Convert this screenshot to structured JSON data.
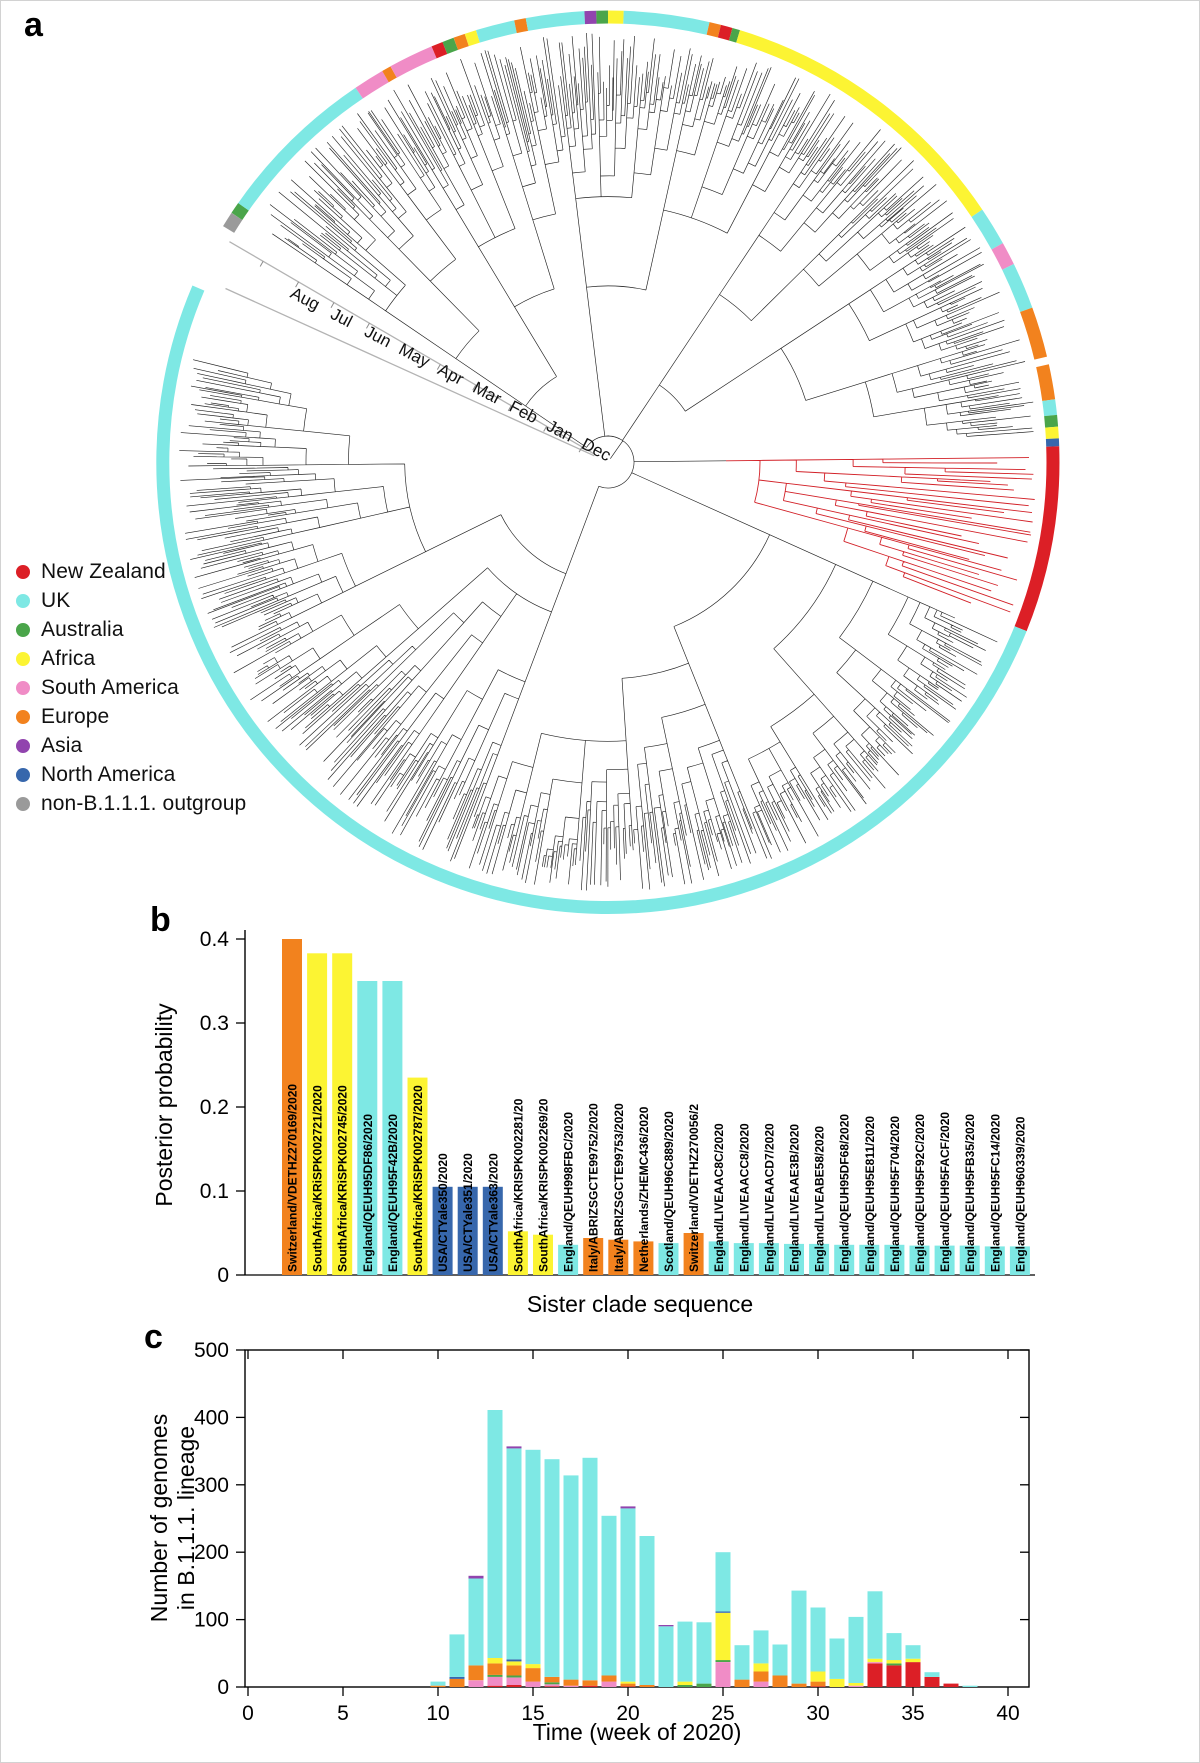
{
  "colors": {
    "new_zealand": "#DC1F26",
    "uk": "#7EE8E4",
    "australia": "#4AA54A",
    "africa": "#FCF433",
    "south_america": "#F08CC6",
    "europe": "#F2821E",
    "asia": "#9144AE",
    "north_america": "#3767AC",
    "outgroup": "#9A9A9A",
    "tree": "#000000",
    "highlight_clade": "#D22027",
    "axis": "#000000",
    "time_axis_line": "#b3b3b3"
  },
  "panel_a": {
    "label": "a",
    "legend": [
      {
        "name": "New Zealand",
        "color_key": "new_zealand"
      },
      {
        "name": "UK",
        "color_key": "uk"
      },
      {
        "name": "Australia",
        "color_key": "australia"
      },
      {
        "name": "Africa",
        "color_key": "africa"
      },
      {
        "name": "South America",
        "color_key": "south_america"
      },
      {
        "name": "Europe",
        "color_key": "europe"
      },
      {
        "name": "Asia",
        "color_key": "asia"
      },
      {
        "name": "North America",
        "color_key": "north_america"
      },
      {
        "name": "non-B.1.1.1. outgroup",
        "color_key": "outgroup"
      }
    ],
    "month_axis": [
      "Dec",
      "Jan",
      "Feb",
      "Mar",
      "Apr",
      "May",
      "Jun",
      "Jul",
      "Aug"
    ],
    "ring_segments": [
      {
        "s": 211.5,
        "e": 213.5,
        "c": "outgroup"
      },
      {
        "s": 213.5,
        "e": 215.0,
        "c": "australia"
      },
      {
        "s": 215.0,
        "e": 236.0,
        "c": "uk"
      },
      {
        "s": 236.0,
        "e": 240.0,
        "c": "south_america"
      },
      {
        "s": 240.0,
        "e": 241.2,
        "c": "europe"
      },
      {
        "s": 241.2,
        "e": 247.0,
        "c": "south_america"
      },
      {
        "s": 247.0,
        "e": 248.5,
        "c": "new_zealand"
      },
      {
        "s": 248.5,
        "e": 250.0,
        "c": "australia"
      },
      {
        "s": 250.0,
        "e": 251.5,
        "c": "europe"
      },
      {
        "s": 251.5,
        "e": 253.0,
        "c": "africa"
      },
      {
        "s": 253.0,
        "e": 258.0,
        "c": "uk"
      },
      {
        "s": 258.0,
        "e": 259.5,
        "c": "europe"
      },
      {
        "s": 259.5,
        "e": 267.0,
        "c": "uk"
      },
      {
        "s": 267.0,
        "e": 268.5,
        "c": "asia"
      },
      {
        "s": 268.5,
        "e": 270.0,
        "c": "australia"
      },
      {
        "s": 270.0,
        "e": 272.0,
        "c": "africa"
      },
      {
        "s": 272.0,
        "e": 283.0,
        "c": "uk"
      },
      {
        "s": 283.0,
        "e": 284.5,
        "c": "europe"
      },
      {
        "s": 284.5,
        "e": 286.0,
        "c": "new_zealand"
      },
      {
        "s": 286.0,
        "e": 287.0,
        "c": "australia"
      },
      {
        "s": 287.0,
        "e": 326.0,
        "c": "africa"
      },
      {
        "s": 326.0,
        "e": 331.0,
        "c": "uk"
      },
      {
        "s": 331.0,
        "e": 334.0,
        "c": "south_america"
      },
      {
        "s": 334.0,
        "e": 340.0,
        "c": "uk"
      },
      {
        "s": 340.0,
        "e": 346.5,
        "c": "europe"
      },
      {
        "s": 347.5,
        "e": 352.0,
        "c": "europe"
      },
      {
        "s": 352.0,
        "e": 354.0,
        "c": "uk"
      },
      {
        "s": 354.0,
        "e": 355.5,
        "c": "australia"
      },
      {
        "s": 355.5,
        "e": 357.0,
        "c": "africa"
      },
      {
        "s": 357.0,
        "e": 358.0,
        "c": "north_america"
      },
      {
        "s": 358.0,
        "e": 382.0,
        "c": "new_zealand"
      },
      {
        "s": 382.0,
        "e": 563.0,
        "c": "uk"
      }
    ]
  },
  "panel_b": {
    "label": "b",
    "ylabel": "Posterior probability",
    "xlabel": "Sister clade sequence",
    "yticks": [
      0,
      0.1,
      0.2,
      0.3,
      0.4
    ]
  },
  "panel_c": {
    "label": "c",
    "ylabel_line1": "Number of genomes",
    "ylabel_line2": "in B.1.1.1. lineage",
    "xlabel": "Time (week of 2020)",
    "yticks": [
      0,
      100,
      200,
      300,
      400,
      500
    ],
    "xticks": [
      0,
      5,
      10,
      15,
      20,
      25,
      30,
      35,
      40
    ]
  },
  "chart_data": [
    {
      "panel": "b",
      "type": "bar",
      "xlabel": "Sister clade sequence",
      "ylabel": "Posterior probability",
      "ylim": [
        0,
        0.4
      ],
      "yticks": [
        0,
        0.1,
        0.2,
        0.3,
        0.4
      ],
      "bars": [
        {
          "seq": "Switzerland/VDETHZ270169/2020",
          "region": "europe",
          "p": 0.4
        },
        {
          "seq": "SouthAfrica/KRiSPK002721/2020",
          "region": "africa",
          "p": 0.383
        },
        {
          "seq": "SouthAfrica/KRiSPK002745/2020",
          "region": "africa",
          "p": 0.383
        },
        {
          "seq": "England/QEUH95DF86/2020",
          "region": "uk",
          "p": 0.35
        },
        {
          "seq": "England/QEUH95F42B/2020",
          "region": "uk",
          "p": 0.35
        },
        {
          "seq": "SouthAfrica/KRiSPK002787/2020",
          "region": "africa",
          "p": 0.235
        },
        {
          "seq": "USA/CTYale350/2020",
          "region": "north_america",
          "p": 0.105
        },
        {
          "seq": "USA/CTYale351/2020",
          "region": "north_america",
          "p": 0.105
        },
        {
          "seq": "USA/CTYale363/2020",
          "region": "north_america",
          "p": 0.105
        },
        {
          "seq": "SouthAfrica/KRISPK002281/20",
          "region": "africa",
          "p": 0.052
        },
        {
          "seq": "SouthAfrica/KRISPK002269/20",
          "region": "africa",
          "p": 0.048
        },
        {
          "seq": "England/QEUH998FBC/2020",
          "region": "uk",
          "p": 0.036
        },
        {
          "seq": "Italy/ABRIZSGCTE99752/2020",
          "region": "europe",
          "p": 0.044
        },
        {
          "seq": "Italy/ABRIZSGCTE99753/2020",
          "region": "europe",
          "p": 0.042
        },
        {
          "seq": "Netherlands/ZHEMC436/2020",
          "region": "europe",
          "p": 0.04
        },
        {
          "seq": "Scotland/QEUH96C889/2020",
          "region": "uk",
          "p": 0.038
        },
        {
          "seq": "Switzerland/VDETHZ270056/2",
          "region": "europe",
          "p": 0.05
        },
        {
          "seq": "England/LIVEAAC8C/2020",
          "region": "uk",
          "p": 0.04
        },
        {
          "seq": "England/LIVEAACC8/2020",
          "region": "uk",
          "p": 0.038
        },
        {
          "seq": "England/LIVEAACD7/2020",
          "region": "uk",
          "p": 0.038
        },
        {
          "seq": "England/LIVEAAE3B/2020",
          "region": "uk",
          "p": 0.037
        },
        {
          "seq": "England/LIVEABE58/2020",
          "region": "uk",
          "p": 0.037
        },
        {
          "seq": "England/QEUH95DF68/2020",
          "region": "uk",
          "p": 0.036
        },
        {
          "seq": "England/QEUH95E811/2020",
          "region": "uk",
          "p": 0.036
        },
        {
          "seq": "England/QEUH95F704/2020",
          "region": "uk",
          "p": 0.036
        },
        {
          "seq": "England/QEUH95F92C/2020",
          "region": "uk",
          "p": 0.035
        },
        {
          "seq": "England/QEUH95FACF/2020",
          "region": "uk",
          "p": 0.035
        },
        {
          "seq": "England/QEUH95FB35/2020",
          "region": "uk",
          "p": 0.035
        },
        {
          "seq": "England/QEUH95FC14/2020",
          "region": "uk",
          "p": 0.034
        },
        {
          "seq": "England/QEUH960339/2020",
          "region": "uk",
          "p": 0.034
        }
      ]
    },
    {
      "panel": "c",
      "type": "stacked_bar",
      "xlabel": "Time (week of 2020)",
      "ylabel": "Number of genomes in B.1.1.1. lineage",
      "xlim": [
        0,
        41
      ],
      "ylim": [
        0,
        500
      ],
      "xticks": [
        0,
        5,
        10,
        15,
        20,
        25,
        30,
        35,
        40
      ],
      "yticks": [
        0,
        100,
        200,
        300,
        400,
        500
      ],
      "stack_order": [
        "new_zealand",
        "south_america",
        "australia",
        "europe",
        "africa",
        "north_america",
        "uk",
        "asia"
      ],
      "bars": [
        {
          "week": 10,
          "europe": 2,
          "uk": 6
        },
        {
          "week": 11,
          "europe": 12,
          "north_america": 3,
          "uk": 63
        },
        {
          "week": 12,
          "south_america": 10,
          "europe": 22,
          "uk": 129,
          "asia": 4
        },
        {
          "week": 13,
          "new_zealand": 2,
          "south_america": 13,
          "australia": 3,
          "europe": 17,
          "africa": 8,
          "uk": 368
        },
        {
          "week": 14,
          "new_zealand": 3,
          "south_america": 11,
          "australia": 3,
          "europe": 15,
          "africa": 6,
          "north_america": 3,
          "uk": 313,
          "asia": 3
        },
        {
          "week": 15,
          "south_america": 8,
          "europe": 20,
          "africa": 6,
          "uk": 318
        },
        {
          "week": 16,
          "new_zealand": 1,
          "south_america": 3,
          "australia": 3,
          "europe": 8,
          "uk": 323
        },
        {
          "week": 17,
          "south_america": 2,
          "europe": 9,
          "uk": 303
        },
        {
          "week": 18,
          "new_zealand": 2,
          "europe": 8,
          "uk": 330
        },
        {
          "week": 19,
          "south_america": 8,
          "europe": 9,
          "uk": 237
        },
        {
          "week": 20,
          "new_zealand": 1,
          "europe": 4,
          "africa": 3,
          "uk": 257,
          "asia": 3
        },
        {
          "week": 21,
          "europe": 3,
          "uk": 221
        },
        {
          "week": 22,
          "uk": 90,
          "asia": 2
        },
        {
          "week": 23,
          "australia": 3,
          "africa": 5,
          "uk": 89
        },
        {
          "week": 24,
          "australia": 5,
          "uk": 91
        },
        {
          "week": 25,
          "south_america": 37,
          "australia": 3,
          "africa": 70,
          "north_america": 2,
          "uk": 88
        },
        {
          "week": 26,
          "europe": 11,
          "uk": 51
        },
        {
          "week": 27,
          "south_america": 8,
          "europe": 15,
          "africa": 12,
          "uk": 49
        },
        {
          "week": 28,
          "europe": 17,
          "uk": 46
        },
        {
          "week": 29,
          "europe": 5,
          "uk": 138
        },
        {
          "week": 30,
          "new_zealand": 1,
          "europe": 7,
          "africa": 15,
          "uk": 95
        },
        {
          "week": 31,
          "africa": 12,
          "uk": 60
        },
        {
          "week": 32,
          "south_america": 2,
          "africa": 4,
          "uk": 98
        },
        {
          "week": 33,
          "new_zealand": 35,
          "south_america": 2,
          "africa": 5,
          "uk": 100
        },
        {
          "week": 34,
          "new_zealand": 32,
          "australia": 3,
          "africa": 5,
          "uk": 40
        },
        {
          "week": 35,
          "new_zealand": 37,
          "africa": 5,
          "uk": 20
        },
        {
          "week": 36,
          "new_zealand": 15,
          "uk": 7
        },
        {
          "week": 37,
          "new_zealand": 5
        },
        {
          "week": 38,
          "uk": 2
        }
      ]
    }
  ]
}
